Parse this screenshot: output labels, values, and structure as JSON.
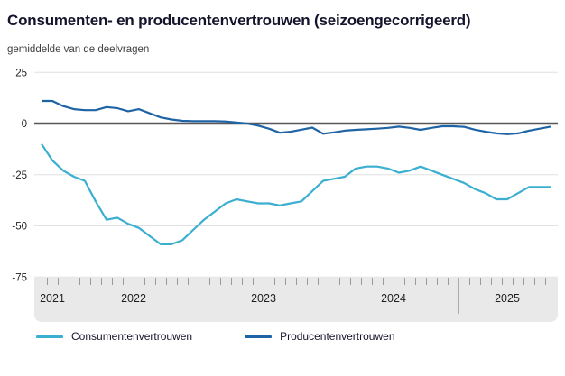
{
  "header": {
    "title": "Consumenten- en producentenvertrouwen (seizoengecorrigeerd)",
    "subtitle": "gemiddelde van de deelvragen"
  },
  "legend": {
    "items": [
      {
        "label": "Consumentenvertrouwen",
        "color": "#3aafd0"
      },
      {
        "label": "Producentenvertrouwen",
        "color": "#1e64a5"
      }
    ]
  },
  "colors": {
    "consumer_line": "#3aafd0",
    "producer_line": "#1e64a5",
    "gridline": "#e0e0e0",
    "zero_line": "#58585a",
    "axis_band_bg": "#e9e9e9",
    "tick": "#9a9a9a",
    "text_dark": "#14142b",
    "axis_text": "#1f1f1f"
  },
  "chart_data": {
    "type": "line",
    "title": "Consumenten- en producentenvertrouwen (seizoengecorrigeerd)",
    "subtitle": "gemiddelde van de deelvragen",
    "ylabel": "",
    "xlabel": "",
    "ylim": [
      -75,
      25
    ],
    "yticks": [
      25,
      0,
      -25,
      -50,
      -75
    ],
    "gridlines": [
      25,
      -25,
      -50,
      -75
    ],
    "zero_line": 0,
    "legend_position": "bottom",
    "x_year_labels": [
      "2021",
      "2022",
      "2023",
      "2024",
      "2025"
    ],
    "x_frequency": "monthly",
    "x_start": "2021-10",
    "x_end": "2025-09",
    "months": [
      "2021-10",
      "2021-11",
      "2021-12",
      "2022-01",
      "2022-02",
      "2022-03",
      "2022-04",
      "2022-05",
      "2022-06",
      "2022-07",
      "2022-08",
      "2022-09",
      "2022-10",
      "2022-11",
      "2022-12",
      "2023-01",
      "2023-02",
      "2023-03",
      "2023-04",
      "2023-05",
      "2023-06",
      "2023-07",
      "2023-08",
      "2023-09",
      "2023-10",
      "2023-11",
      "2023-12",
      "2024-01",
      "2024-02",
      "2024-03",
      "2024-04",
      "2024-05",
      "2024-06",
      "2024-07",
      "2024-08",
      "2024-09",
      "2024-10",
      "2024-11",
      "2024-12",
      "2025-01",
      "2025-02",
      "2025-03",
      "2025-04",
      "2025-05",
      "2025-06",
      "2025-07",
      "2025-08",
      "2025-09"
    ],
    "series": [
      {
        "name": "Consumentenvertrouwen",
        "values": [
          -10,
          -18,
          -23,
          -26,
          -28,
          -38,
          -47,
          -46,
          -49,
          -51,
          -55,
          -59,
          -59,
          -57,
          -52,
          -47,
          -43,
          -39,
          -37,
          -38,
          -39,
          -39,
          -40,
          -39,
          -38,
          -33,
          -28,
          -27,
          -26,
          -22,
          -21,
          -21,
          -22,
          -24,
          -23,
          -21,
          -23,
          -25,
          -27,
          -29,
          -32,
          -34,
          -37,
          -37,
          -34,
          -31,
          -31,
          -31
        ]
      },
      {
        "name": "Producentenvertrouwen",
        "values": [
          11,
          11,
          8.5,
          7,
          6.5,
          6.5,
          8,
          7.5,
          6,
          7,
          5,
          3,
          2,
          1.3,
          1.2,
          1.2,
          1.2,
          1,
          0.5,
          0,
          -1,
          -2.5,
          -4.5,
          -4,
          -3,
          -2,
          -5,
          -4.3,
          -3.5,
          -3.1,
          -2.8,
          -2.5,
          -2.1,
          -1.5,
          -2.1,
          -3.1,
          -2.1,
          -1.3,
          -1.3,
          -1.6,
          -3,
          -4,
          -4.8,
          -5.2,
          -4.8,
          -3.5,
          -2.5,
          -1.5
        ]
      }
    ]
  }
}
